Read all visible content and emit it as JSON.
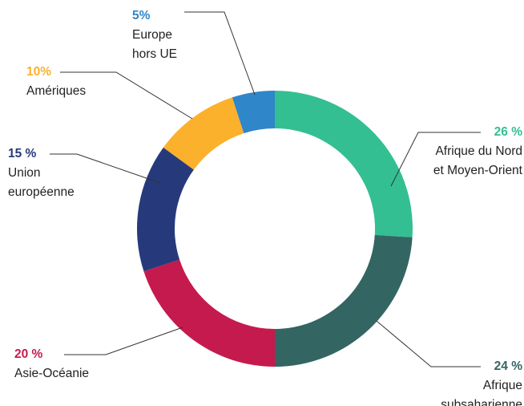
{
  "chart_data": {
    "type": "pie",
    "categories": [
      "Afrique du Nord et Moyen-Orient",
      "Afrique subsaharienne",
      "Asie-Océanie",
      "Union européenne",
      "Amériques",
      "Europe hors UE"
    ],
    "values": [
      26,
      24,
      20,
      15,
      10,
      5
    ],
    "value_labels": [
      "26 %",
      "24 %",
      "20 %",
      "15 %",
      "10%",
      "5%"
    ],
    "colors": [
      "#34bf93",
      "#336563",
      "#c51a4d",
      "#263a7b",
      "#fbb12b",
      "#2f86c8"
    ]
  }
}
